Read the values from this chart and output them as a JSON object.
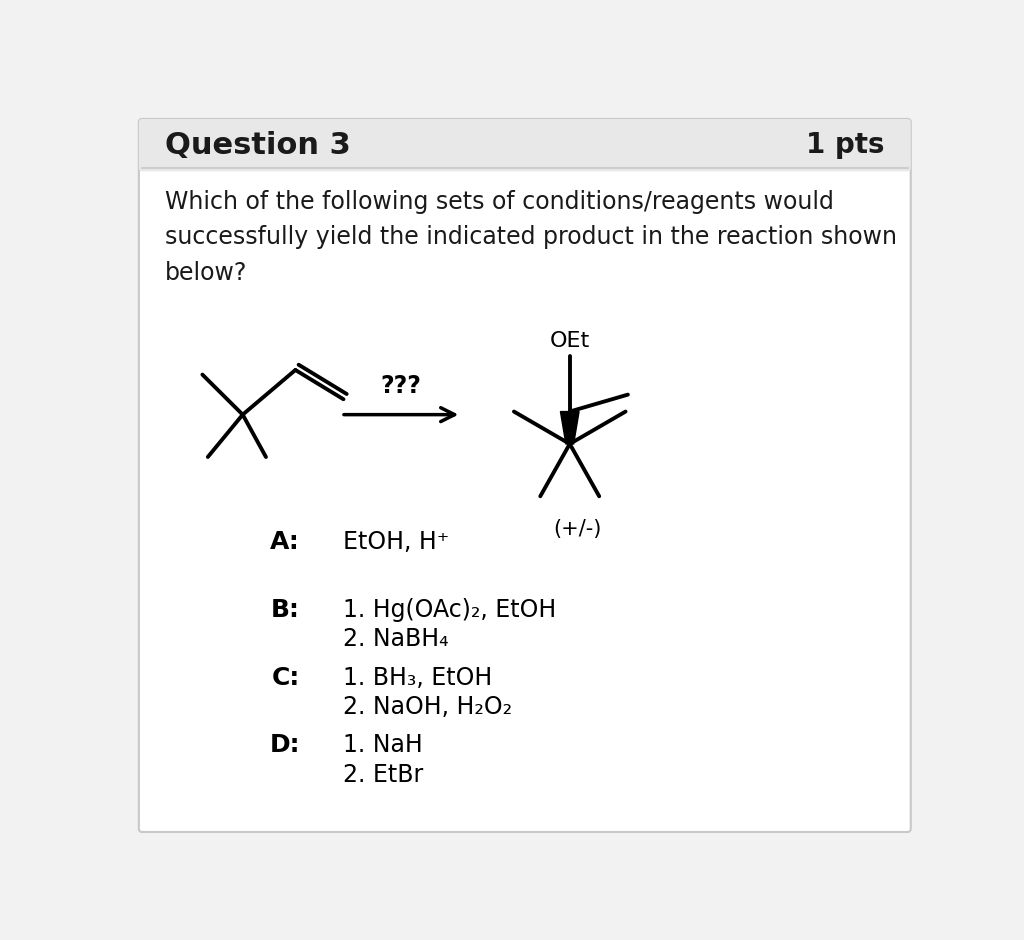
{
  "title": "Question 3",
  "pts": "1 pts",
  "question_text": "Which of the following sets of conditions/reagents would\nsuccessfully yield the indicated product in the reaction shown\nbelow?",
  "arrow_label": "???",
  "product_label": "(+/-)",
  "product_top_label": "OEt",
  "options": [
    {
      "label": "A:",
      "line1": "EtOH, H⁺",
      "line2": null
    },
    {
      "label": "B:",
      "line1": "1. Hg(OAc)₂, EtOH",
      "line2": "2. NaBH₄"
    },
    {
      "label": "C:",
      "line1": "1. BH₃, EtOH",
      "line2": "2. NaOH, H₂O₂"
    },
    {
      "label": "D:",
      "line1": "1. NaH",
      "line2": "2. EtBr"
    }
  ],
  "bg_color": "#f2f2f2",
  "header_bg": "#e8e8e8",
  "border_color": "#c8c8c8",
  "text_color": "#1a1a1a",
  "body_bg": "#ffffff"
}
